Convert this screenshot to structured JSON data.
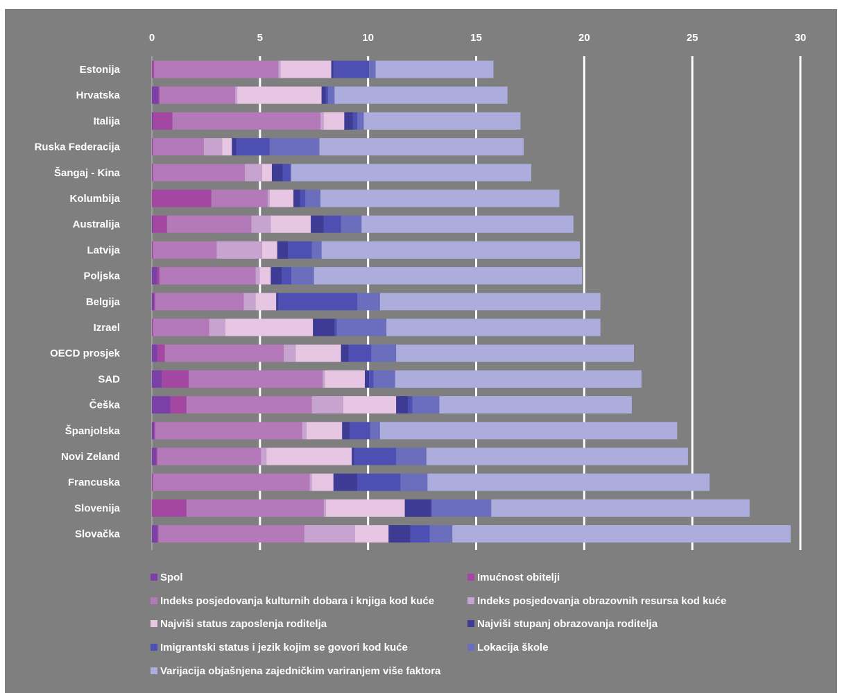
{
  "chart_data": {
    "type": "bar",
    "orientation": "horizontal",
    "stacked": true,
    "xlim": [
      0,
      30
    ],
    "x_ticks": [
      "0",
      "5",
      "10",
      "15",
      "20",
      "25",
      "30"
    ],
    "grid": true,
    "legend_position": "bottom",
    "categories": [
      "Estonija",
      "Hrvatska",
      "Italija",
      "Ruska Federacija",
      "Šangaj - Kina",
      "Kolumbija",
      "Australija",
      "Latvija",
      "Poljska",
      "Belgija",
      "Izrael",
      "OECD prosjek",
      "SAD",
      "Češka",
      "Španjolska",
      "Novi Zeland",
      "Francuska",
      "Slovenija",
      "Slovačka"
    ],
    "series": [
      {
        "name": "Spol",
        "color": "#7b3fa8",
        "values": [
          0.0,
          0.3,
          0.05,
          0.0,
          0.0,
          0.0,
          0.05,
          0.0,
          0.25,
          0.1,
          0.0,
          0.25,
          0.45,
          0.85,
          0.1,
          0.2,
          0.0,
          0.0,
          0.25
        ]
      },
      {
        "name": "Imućnost obitelji",
        "color": "#a347a3",
        "values": [
          0.1,
          0.05,
          0.9,
          0.05,
          0.05,
          2.75,
          0.65,
          0.05,
          0.1,
          0.05,
          0.05,
          0.35,
          1.25,
          0.75,
          0.05,
          0.05,
          0.05,
          1.6,
          0.05
        ]
      },
      {
        "name": "Indeks posjedovanja kulturnih dobara i knjiga kod kuće",
        "color": "#b479b9",
        "values": [
          5.75,
          3.5,
          6.85,
          2.35,
          4.25,
          2.6,
          3.9,
          2.95,
          4.45,
          4.1,
          2.6,
          5.5,
          6.2,
          5.8,
          6.8,
          4.8,
          7.25,
          6.35,
          6.75
        ]
      },
      {
        "name": "Indeks posjedovanja obrazovnih resursa kod kuće",
        "color": "#c7a3cf",
        "values": [
          0.1,
          0.1,
          0.15,
          0.85,
          0.8,
          0.1,
          0.9,
          2.1,
          0.2,
          0.55,
          0.75,
          0.55,
          0.1,
          1.45,
          0.2,
          0.25,
          0.1,
          0.1,
          2.35
        ]
      },
      {
        "name": "Najviši status zaposlenja roditelja",
        "color": "#e6c6e2",
        "values": [
          2.35,
          3.9,
          0.95,
          0.45,
          0.45,
          1.1,
          1.85,
          0.7,
          0.5,
          0.95,
          4.05,
          2.1,
          1.85,
          2.45,
          1.65,
          3.95,
          1.0,
          3.65,
          1.55
        ]
      },
      {
        "name": "Najviši stupanj obrazovanja roditelja",
        "color": "#3d3b93",
        "values": [
          0.1,
          0.2,
          0.4,
          0.2,
          0.5,
          0.3,
          0.6,
          0.5,
          0.5,
          0.1,
          1.0,
          0.35,
          0.2,
          0.55,
          0.35,
          0.1,
          1.1,
          1.2,
          1.0
        ]
      },
      {
        "name": "Imigrantski status i jezik kojim se govori kod kuće",
        "color": "#4d4fb3",
        "values": [
          1.65,
          0.1,
          0.2,
          1.55,
          0.35,
          0.25,
          0.8,
          1.1,
          0.45,
          3.65,
          0.1,
          1.05,
          0.2,
          0.2,
          0.95,
          1.95,
          2.0,
          0.05,
          0.9
        ]
      },
      {
        "name": "Lokacija škole",
        "color": "#6a6ebd",
        "values": [
          0.3,
          0.3,
          0.3,
          2.3,
          0.05,
          0.7,
          0.95,
          0.45,
          1.05,
          1.05,
          2.3,
          1.15,
          1.0,
          1.25,
          0.45,
          1.4,
          1.25,
          2.75,
          1.05
        ]
      },
      {
        "name": "Varijacija objašnjena zajedničkim variranjem više faktora",
        "color": "#acaddd",
        "values": [
          5.45,
          8.0,
          7.25,
          9.45,
          11.1,
          11.05,
          9.8,
          11.95,
          12.4,
          10.2,
          9.9,
          11.0,
          11.4,
          8.9,
          13.75,
          12.1,
          13.05,
          11.95,
          15.65
        ]
      }
    ]
  }
}
